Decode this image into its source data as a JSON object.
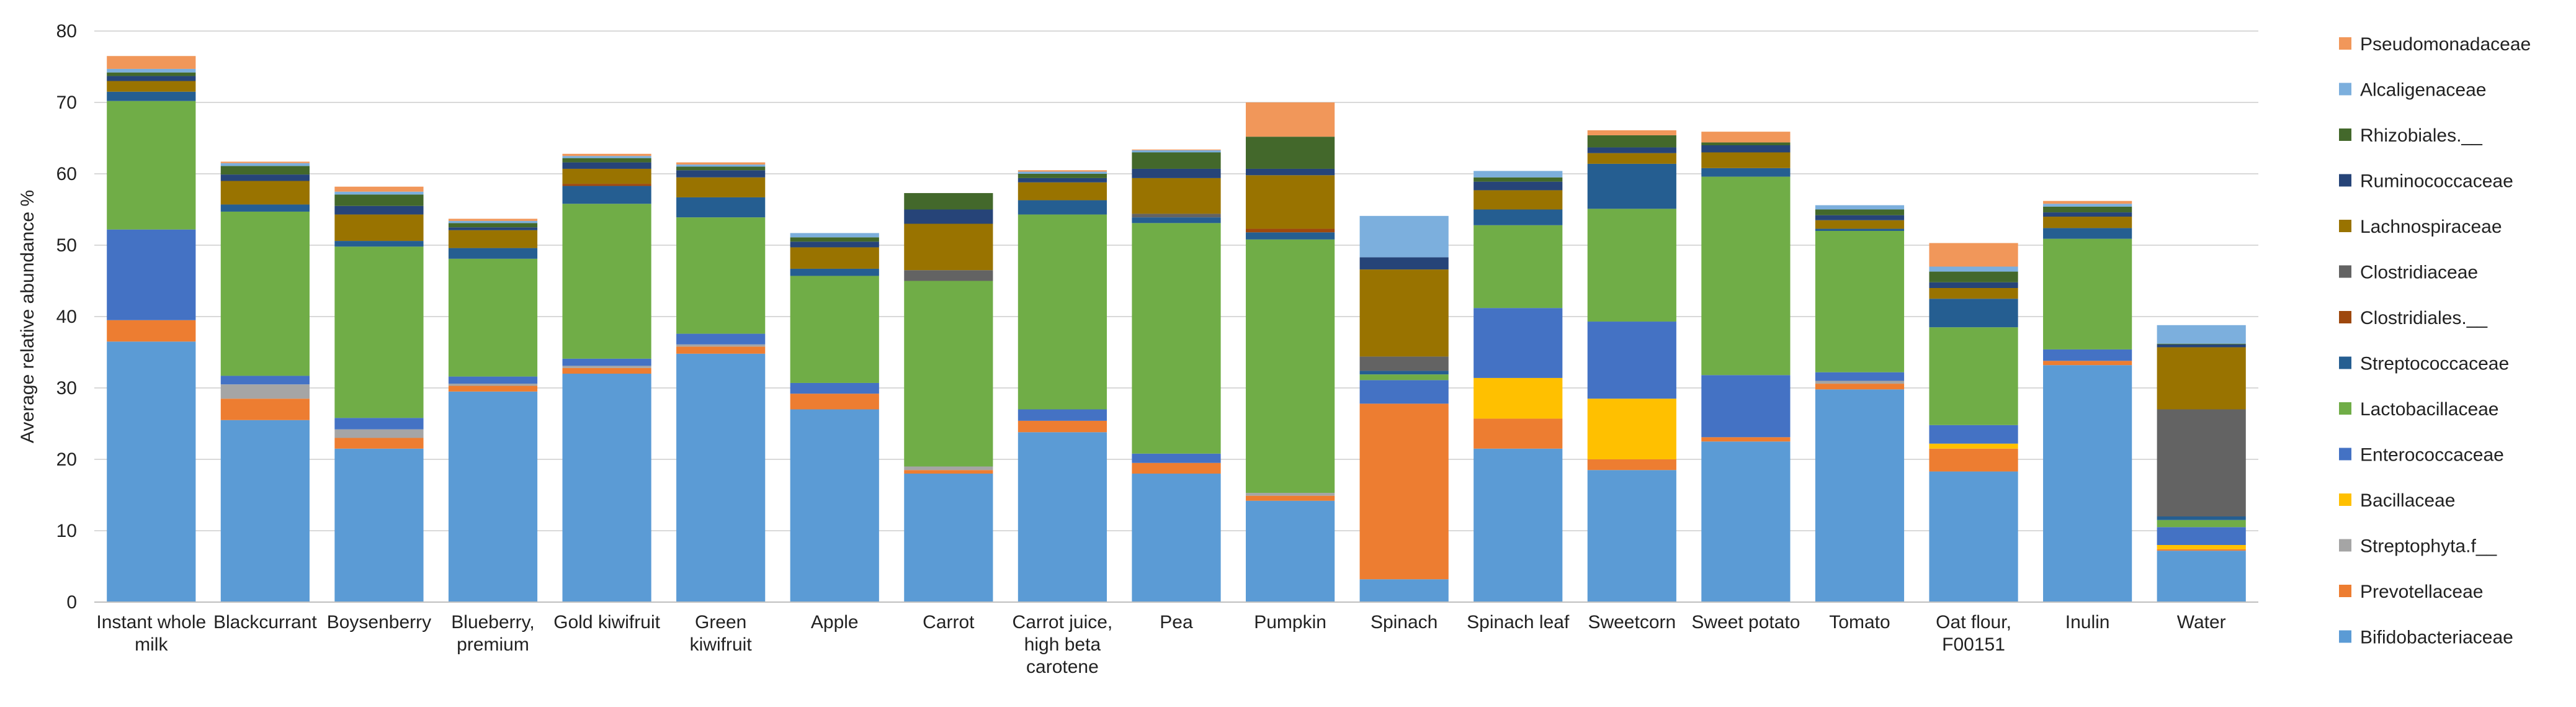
{
  "chart_data": {
    "type": "bar",
    "stacked": true,
    "title": "",
    "xlabel": "",
    "ylabel": "Average relative abundance %",
    "ylim": [
      0,
      80
    ],
    "yticks": [
      0,
      10,
      20,
      30,
      40,
      50,
      60,
      70,
      80
    ],
    "legend_position": "right",
    "categories": [
      [
        "Instant whole",
        "milk"
      ],
      [
        "Blackcurrant"
      ],
      [
        "Boysenberry"
      ],
      [
        "Blueberry,",
        "premium"
      ],
      [
        "Gold kiwifruit"
      ],
      [
        "Green",
        "kiwifruit"
      ],
      [
        "Apple"
      ],
      [
        "Carrot"
      ],
      [
        "Carrot juice,",
        "high beta",
        "carotene"
      ],
      [
        "Pea"
      ],
      [
        "Pumpkin"
      ],
      [
        "Spinach"
      ],
      [
        "Spinach leaf"
      ],
      [
        "Sweetcorn"
      ],
      [
        "Sweet potato"
      ],
      [
        "Tomato"
      ],
      [
        "Oat flour,",
        "F00151"
      ],
      [
        "Inulin"
      ],
      [
        "Water"
      ]
    ],
    "series": [
      {
        "name": "Bifidobacteriaceae",
        "color": "#5B9BD5",
        "values": [
          36.5,
          25.5,
          21.5,
          29.5,
          32,
          34.8,
          27,
          18,
          23.8,
          18,
          14.2,
          3.2,
          21.5,
          18.5,
          22.5,
          29.8,
          18.3,
          33.2,
          7.2
        ]
      },
      {
        "name": "Prevotellaceae",
        "color": "#ED7D31",
        "values": [
          3,
          3,
          1.5,
          0.8,
          0.8,
          1,
          2.2,
          0.5,
          1.6,
          1.5,
          0.7,
          24.6,
          4.2,
          1.5,
          0.6,
          0.8,
          3.2,
          0.6,
          0.2
        ]
      },
      {
        "name": "Streptophyta.f__",
        "color": "#A5A5A5",
        "values": [
          0,
          2,
          1.2,
          0.3,
          0.3,
          0.3,
          0,
          0.5,
          0,
          0,
          0.4,
          0,
          0,
          0,
          0,
          0.4,
          0,
          0,
          0
        ]
      },
      {
        "name": "Bacillaceae",
        "color": "#FFC000",
        "values": [
          0,
          0,
          0,
          0,
          0,
          0,
          0,
          0,
          0,
          0,
          0,
          0,
          5.7,
          8.5,
          0,
          0,
          0.7,
          0,
          0.6
        ]
      },
      {
        "name": "Enterococcaceae",
        "color": "#4472C4",
        "values": [
          12.7,
          1.2,
          1.6,
          1,
          1,
          1.5,
          1.5,
          0,
          1.6,
          1.3,
          0,
          3.3,
          9.8,
          10.8,
          8.7,
          1.2,
          2.6,
          1.6,
          2.5
        ]
      },
      {
        "name": "Lactobacillaceae",
        "color": "#70AD47",
        "values": [
          18,
          23,
          24,
          16.5,
          21.7,
          16.3,
          15,
          26,
          27.3,
          32.3,
          35.5,
          0.8,
          11.6,
          15.8,
          27.8,
          19.8,
          13.7,
          15.5,
          1
        ]
      },
      {
        "name": "Streptococcaceae",
        "color": "#255E91",
        "values": [
          1.3,
          1,
          0.8,
          1.5,
          2.5,
          2.8,
          1,
          0,
          2,
          0.8,
          1,
          0.5,
          2.2,
          6.3,
          1.2,
          0.3,
          4,
          1.5,
          0.5
        ]
      },
      {
        "name": "Clostridiales.__",
        "color": "#9E480E",
        "values": [
          0,
          0,
          0,
          0,
          0.3,
          0,
          0,
          0,
          0,
          0,
          0.5,
          0,
          0,
          0,
          0,
          0,
          0,
          0,
          0
        ]
      },
      {
        "name": "Clostridiaceae",
        "color": "#636363",
        "values": [
          0,
          0,
          0,
          0,
          0,
          0,
          0,
          1.5,
          0,
          0.5,
          0,
          2,
          0,
          0,
          0,
          0,
          0,
          0,
          15
        ]
      },
      {
        "name": "Lachnospiraceae",
        "color": "#997300",
        "values": [
          1.5,
          3.3,
          3.7,
          2.5,
          2.1,
          2.8,
          3,
          6.5,
          2.5,
          5,
          7.5,
          12.2,
          2.7,
          1.5,
          2.2,
          1.2,
          1.5,
          1.6,
          8.7
        ]
      },
      {
        "name": "Ruminococcaceae",
        "color": "#264478",
        "values": [
          0.7,
          0.9,
          1.2,
          0.4,
          0.9,
          1,
          0.8,
          2,
          0.6,
          1.3,
          0.9,
          1.7,
          1.2,
          0.8,
          1,
          0.7,
          0.8,
          0.6,
          0.4
        ]
      },
      {
        "name": "Rhizobiales.__",
        "color": "#43682B",
        "values": [
          0.5,
          1.2,
          1.6,
          0.6,
          0.6,
          0.5,
          0.6,
          2.3,
          0.6,
          2.3,
          4.5,
          0,
          0.6,
          1.7,
          0.4,
          0.8,
          1.5,
          0.8,
          0.1
        ]
      },
      {
        "name": "Alcaligenaceae",
        "color": "#7CAFDD",
        "values": [
          0.5,
          0.4,
          0.4,
          0.3,
          0.3,
          0.3,
          0.6,
          0,
          0.3,
          0.3,
          0,
          5.8,
          0.9,
          0,
          0,
          0.6,
          0.7,
          0.4,
          2.6
        ]
      },
      {
        "name": "Pseudomonadaceae",
        "color": "#F1975A",
        "values": [
          1.8,
          0.2,
          0.7,
          0.3,
          0.3,
          0.3,
          0,
          0,
          0.2,
          0.1,
          4.8,
          0,
          0,
          0.7,
          1.5,
          0,
          3.3,
          0.4,
          0
        ]
      }
    ]
  }
}
